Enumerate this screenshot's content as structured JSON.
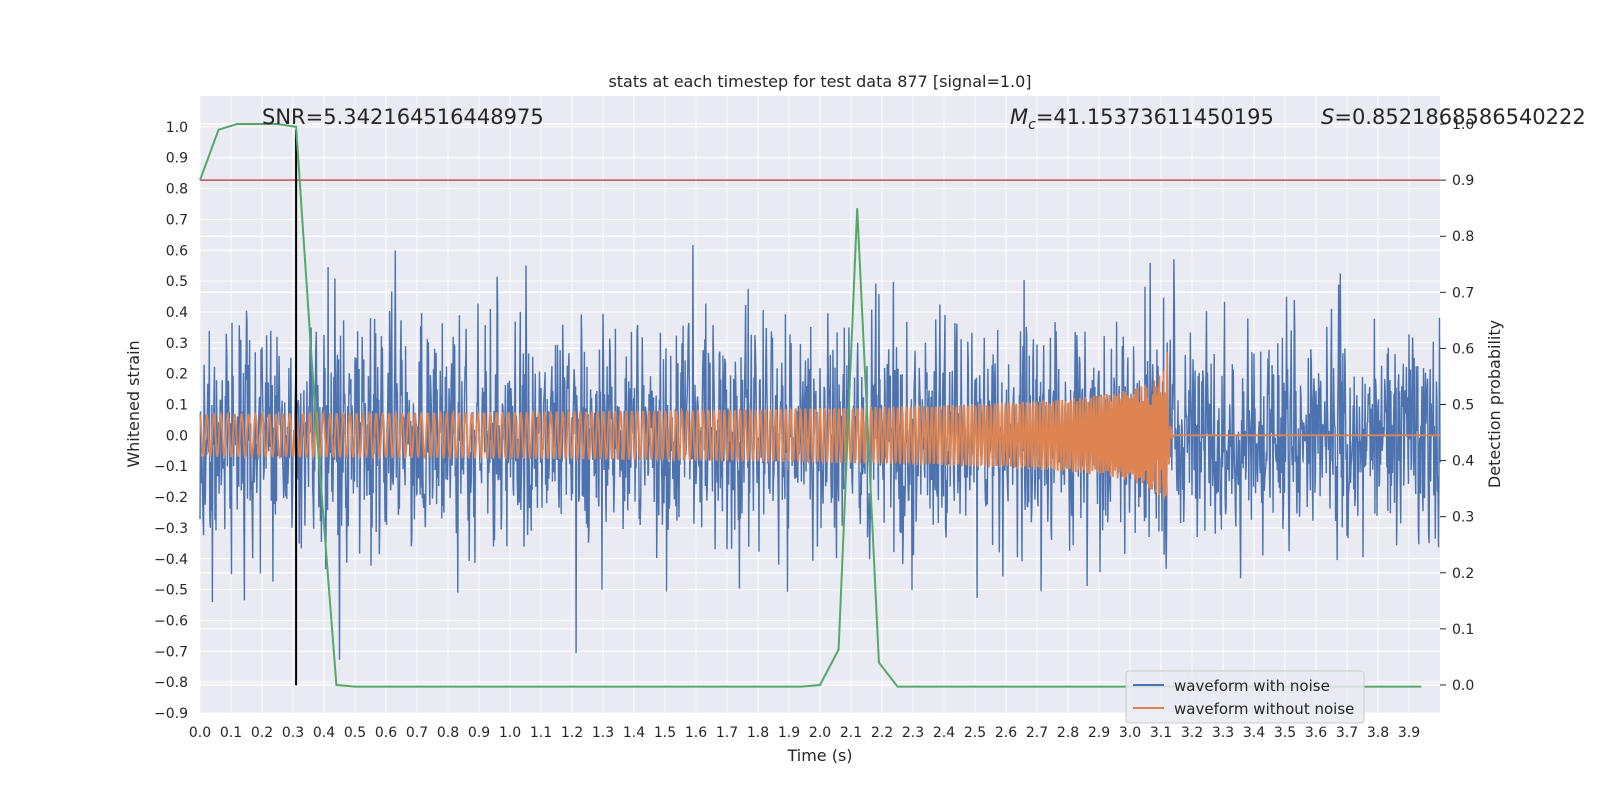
{
  "chart_data": {
    "type": "line",
    "title": "stats at each timestep for test data 877 [signal=1.0]",
    "xlabel": "Time (s)",
    "ylabel_left": "Whitened strain",
    "ylabel_right": "Detection probability",
    "xlim": [
      0.0,
      4.0
    ],
    "ylim_left": [
      -0.9,
      1.1
    ],
    "ylim_right": [
      -0.05,
      1.05
    ],
    "x_ticks": [
      "0.0",
      "0.1",
      "0.2",
      "0.3",
      "0.4",
      "0.5",
      "0.6",
      "0.7",
      "0.8",
      "0.9",
      "1.0",
      "1.1",
      "1.2",
      "1.3",
      "1.4",
      "1.5",
      "1.6",
      "1.7",
      "1.8",
      "1.9",
      "2.0",
      "2.1",
      "2.2",
      "2.3",
      "2.4",
      "2.5",
      "2.6",
      "2.7",
      "2.8",
      "2.9",
      "3.0",
      "3.1",
      "3.2",
      "3.3",
      "3.4",
      "3.5",
      "3.6",
      "3.7",
      "3.8",
      "3.9"
    ],
    "y_ticks_left": [
      "1.0",
      "0.9",
      "0.8",
      "0.7",
      "0.6",
      "0.5",
      "0.4",
      "0.3",
      "0.2",
      "0.1",
      "0.0",
      "−0.1",
      "−0.2",
      "−0.3",
      "−0.4",
      "−0.5",
      "−0.6",
      "−0.7",
      "−0.8",
      "−0.9"
    ],
    "y_ticks_right": [
      "1.0",
      "0.9",
      "0.8",
      "0.7",
      "0.6",
      "0.5",
      "0.4",
      "0.3",
      "0.2",
      "0.1",
      "0.0"
    ],
    "annotations": {
      "snr": "SNR=5.342164516448975",
      "mc_label": "M",
      "mc_sub": "c",
      "mc_value": "=41.15373611450195",
      "s_label": "S",
      "s_value": "=0.8521868586540222"
    },
    "threshold_right": 0.9,
    "threshold_color": "#c44e52",
    "marker_line_x": 0.31,
    "marker_line_color": "#000000",
    "series": [
      {
        "name": "waveform with noise",
        "color": "#4c72b0",
        "noise_std": 0.17,
        "duration": 4.0
      },
      {
        "name": "waveform without noise",
        "color": "#dd8452",
        "chirp_start": 0.0,
        "chirp_merger": 3.12,
        "chirp_peak_amplitude": 0.27
      }
    ],
    "detection_probability": {
      "color": "#55a868",
      "x": [
        0.0,
        0.06,
        0.12,
        0.19,
        0.25,
        0.31,
        0.37,
        0.44,
        0.5,
        0.56,
        0.62,
        0.69,
        0.75,
        0.81,
        0.87,
        0.94,
        1.0,
        1.06,
        1.12,
        1.19,
        1.25,
        1.31,
        1.37,
        1.44,
        1.5,
        1.56,
        1.62,
        1.69,
        1.75,
        1.81,
        1.87,
        1.94,
        2.0,
        2.06,
        2.12,
        2.19,
        2.25,
        2.31,
        2.37,
        2.44,
        2.5,
        2.56,
        2.62,
        2.69,
        2.75,
        2.81,
        2.87,
        2.94,
        3.0,
        3.06,
        3.12,
        3.19,
        3.25,
        3.31,
        3.37,
        3.44,
        3.5,
        3.56,
        3.62,
        3.69,
        3.75,
        3.81,
        3.87,
        3.94
      ],
      "y": [
        0.9,
        0.99,
        1.0,
        1.0,
        1.0,
        0.995,
        0.5,
        0.0,
        -0.003,
        -0.003,
        -0.003,
        -0.003,
        -0.003,
        -0.003,
        -0.003,
        -0.003,
        -0.003,
        -0.003,
        -0.003,
        -0.003,
        -0.003,
        -0.003,
        -0.003,
        -0.003,
        -0.003,
        -0.003,
        -0.003,
        -0.003,
        -0.003,
        -0.003,
        -0.003,
        -0.003,
        0.0,
        0.063,
        0.85,
        0.04,
        -0.003,
        -0.003,
        -0.003,
        -0.003,
        -0.003,
        -0.003,
        -0.003,
        -0.003,
        -0.003,
        -0.003,
        -0.003,
        -0.003,
        -0.003,
        -0.003,
        -0.003,
        -0.003,
        -0.003,
        -0.003,
        -0.003,
        -0.003,
        -0.003,
        -0.003,
        -0.003,
        -0.003,
        -0.003,
        -0.003,
        -0.003,
        -0.003
      ]
    },
    "legend_position": "lower-right"
  }
}
